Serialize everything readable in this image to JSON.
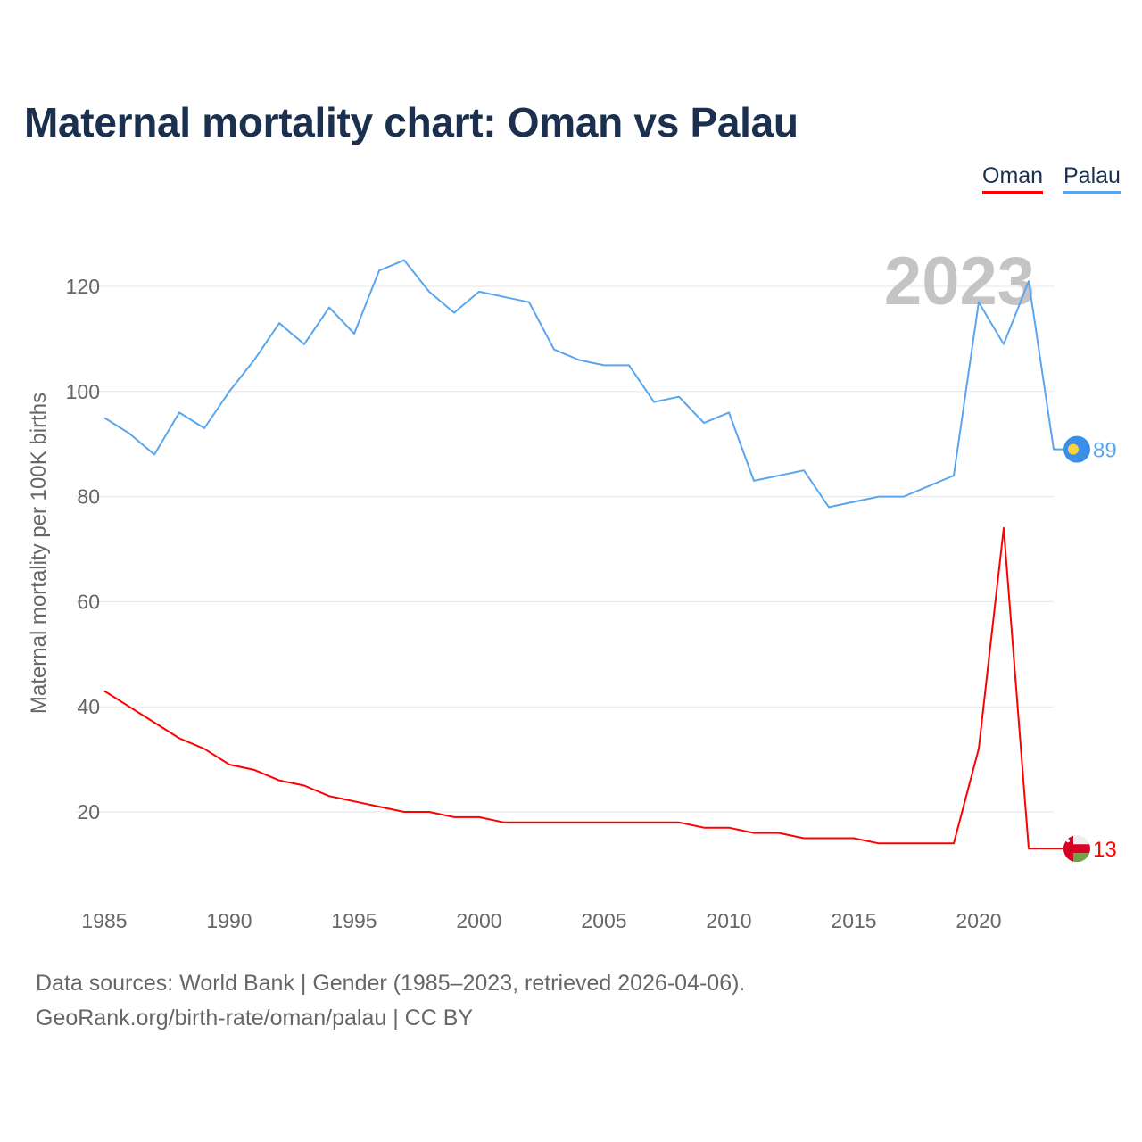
{
  "header": {
    "title": "Maternal mortality chart: Oman vs Palau"
  },
  "legend": [
    {
      "label": "Oman",
      "color": "#ff0000"
    },
    {
      "label": "Palau",
      "color": "#5aa6ee"
    }
  ],
  "chart_data": {
    "type": "line",
    "title": "Maternal mortality chart: Oman vs Palau",
    "xlabel": "",
    "ylabel": "Maternal mortality per 100K births",
    "year_label": "2023",
    "xlim": [
      1985,
      2023
    ],
    "ylim": [
      5,
      130
    ],
    "x_ticks": [
      1985,
      1990,
      1995,
      2000,
      2005,
      2010,
      2015,
      2020
    ],
    "y_ticks": [
      20,
      40,
      60,
      80,
      100,
      120
    ],
    "grid": true,
    "legend_position": "top-right",
    "x": [
      1985,
      1986,
      1987,
      1988,
      1989,
      1990,
      1991,
      1992,
      1993,
      1994,
      1995,
      1996,
      1997,
      1998,
      1999,
      2000,
      2001,
      2002,
      2003,
      2004,
      2005,
      2006,
      2007,
      2008,
      2009,
      2010,
      2011,
      2012,
      2013,
      2014,
      2015,
      2016,
      2017,
      2018,
      2019,
      2020,
      2021,
      2022,
      2023
    ],
    "series": [
      {
        "name": "Oman",
        "color": "#ff0000",
        "end_label": "13",
        "flag": "oman-flag",
        "values": [
          43,
          40,
          37,
          34,
          32,
          29,
          28,
          26,
          25,
          23,
          22,
          21,
          20,
          20,
          19,
          19,
          18,
          18,
          18,
          18,
          18,
          18,
          18,
          18,
          17,
          17,
          16,
          16,
          15,
          15,
          15,
          14,
          14,
          14,
          14,
          32,
          74,
          13,
          13
        ]
      },
      {
        "name": "Palau",
        "color": "#5aa6ee",
        "end_label": "89",
        "flag": "palau-flag",
        "values": [
          95,
          92,
          88,
          96,
          93,
          100,
          106,
          113,
          109,
          116,
          111,
          123,
          125,
          119,
          115,
          119,
          118,
          117,
          108,
          106,
          105,
          105,
          98,
          99,
          94,
          96,
          83,
          84,
          85,
          78,
          79,
          80,
          80,
          82,
          84,
          117,
          109,
          121,
          89
        ]
      }
    ]
  },
  "footer": {
    "sources": "Data sources: World Bank | Gender (1985–2023, retrieved 2026-04-06).",
    "credit": "GeoRank.org/birth-rate/oman/palau | CC BY"
  }
}
